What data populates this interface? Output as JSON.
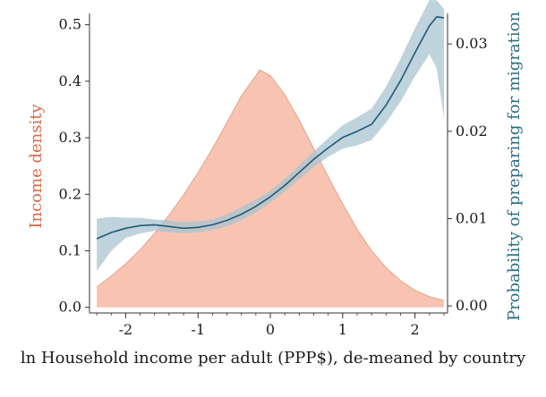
{
  "chart_data": {
    "type": "area",
    "xlabel": "ln Household income per adult (PPP$), de-meaned by country",
    "ylabel_left": "Income density",
    "ylabel_right": "Probability of preparing for migration",
    "xlim": [
      -2.5,
      2.45
    ],
    "ylim_left": [
      -0.01,
      0.52
    ],
    "ylim_right": [
      -0.0008,
      0.0335
    ],
    "x_ticks": [
      -2,
      -1,
      0,
      1,
      2
    ],
    "x_tick_labels": [
      "-2",
      "-1",
      "0",
      "1",
      "2"
    ],
    "y_left_ticks": [
      0.0,
      0.1,
      0.2,
      0.3,
      0.4,
      0.5
    ],
    "y_left_tick_labels": [
      "0.0",
      "0.1",
      "0.2",
      "0.3",
      "0.4",
      "0.5"
    ],
    "y_right_ticks": [
      0.0,
      0.01,
      0.02,
      0.03
    ],
    "y_right_tick_labels": [
      "0.00",
      "0.01",
      "0.02",
      "0.03"
    ],
    "grid": false,
    "colors": {
      "density_fill": "#f8c4b1",
      "density_edge": "#e0a58c",
      "left_label": "#d96a45",
      "line": "#1f5a78",
      "band": "#a9c4d0",
      "right_label": "#2a6e85",
      "axis": "#333333"
    },
    "series": [
      {
        "name": "Income density",
        "axis": "left",
        "kind": "area",
        "x": [
          -2.4,
          -2.2,
          -2.0,
          -1.8,
          -1.6,
          -1.4,
          -1.2,
          -1.0,
          -0.8,
          -0.6,
          -0.4,
          -0.2,
          -0.15,
          0.0,
          0.2,
          0.4,
          0.6,
          0.8,
          1.0,
          1.2,
          1.4,
          1.6,
          1.8,
          2.0,
          2.2,
          2.4
        ],
        "y": [
          0.036,
          0.055,
          0.077,
          0.102,
          0.131,
          0.163,
          0.199,
          0.238,
          0.281,
          0.327,
          0.374,
          0.41,
          0.42,
          0.41,
          0.376,
          0.331,
          0.281,
          0.231,
          0.183,
          0.138,
          0.1,
          0.07,
          0.047,
          0.03,
          0.019,
          0.012
        ]
      },
      {
        "name": "Probability of preparing for migration",
        "axis": "right",
        "kind": "line",
        "x": [
          -2.4,
          -2.2,
          -2.0,
          -1.8,
          -1.6,
          -1.4,
          -1.2,
          -1.0,
          -0.8,
          -0.6,
          -0.4,
          -0.2,
          0.0,
          0.2,
          0.4,
          0.6,
          0.8,
          1.0,
          1.2,
          1.4,
          1.6,
          1.8,
          2.0,
          2.2,
          2.3,
          2.4
        ],
        "y": [
          0.0077,
          0.0084,
          0.0089,
          0.0092,
          0.0093,
          0.0091,
          0.0089,
          0.009,
          0.0093,
          0.0098,
          0.0105,
          0.0114,
          0.0125,
          0.0138,
          0.0153,
          0.0168,
          0.0181,
          0.0193,
          0.02,
          0.0208,
          0.023,
          0.0258,
          0.029,
          0.0321,
          0.0331,
          0.033
        ],
        "lower": [
          0.004,
          0.0063,
          0.0078,
          0.0083,
          0.0086,
          0.0084,
          0.0083,
          0.0084,
          0.0087,
          0.0091,
          0.0098,
          0.0107,
          0.0118,
          0.0131,
          0.0145,
          0.0159,
          0.0171,
          0.018,
          0.0184,
          0.019,
          0.021,
          0.0234,
          0.0263,
          0.0288,
          0.0272,
          0.0215
        ],
        "upper": [
          0.01,
          0.0102,
          0.0101,
          0.0101,
          0.0099,
          0.0098,
          0.0096,
          0.0097,
          0.0099,
          0.0105,
          0.0113,
          0.0122,
          0.0132,
          0.0146,
          0.0161,
          0.0177,
          0.0192,
          0.0207,
          0.0216,
          0.0226,
          0.0251,
          0.0283,
          0.0318,
          0.035,
          0.035,
          0.034
        ]
      }
    ]
  }
}
